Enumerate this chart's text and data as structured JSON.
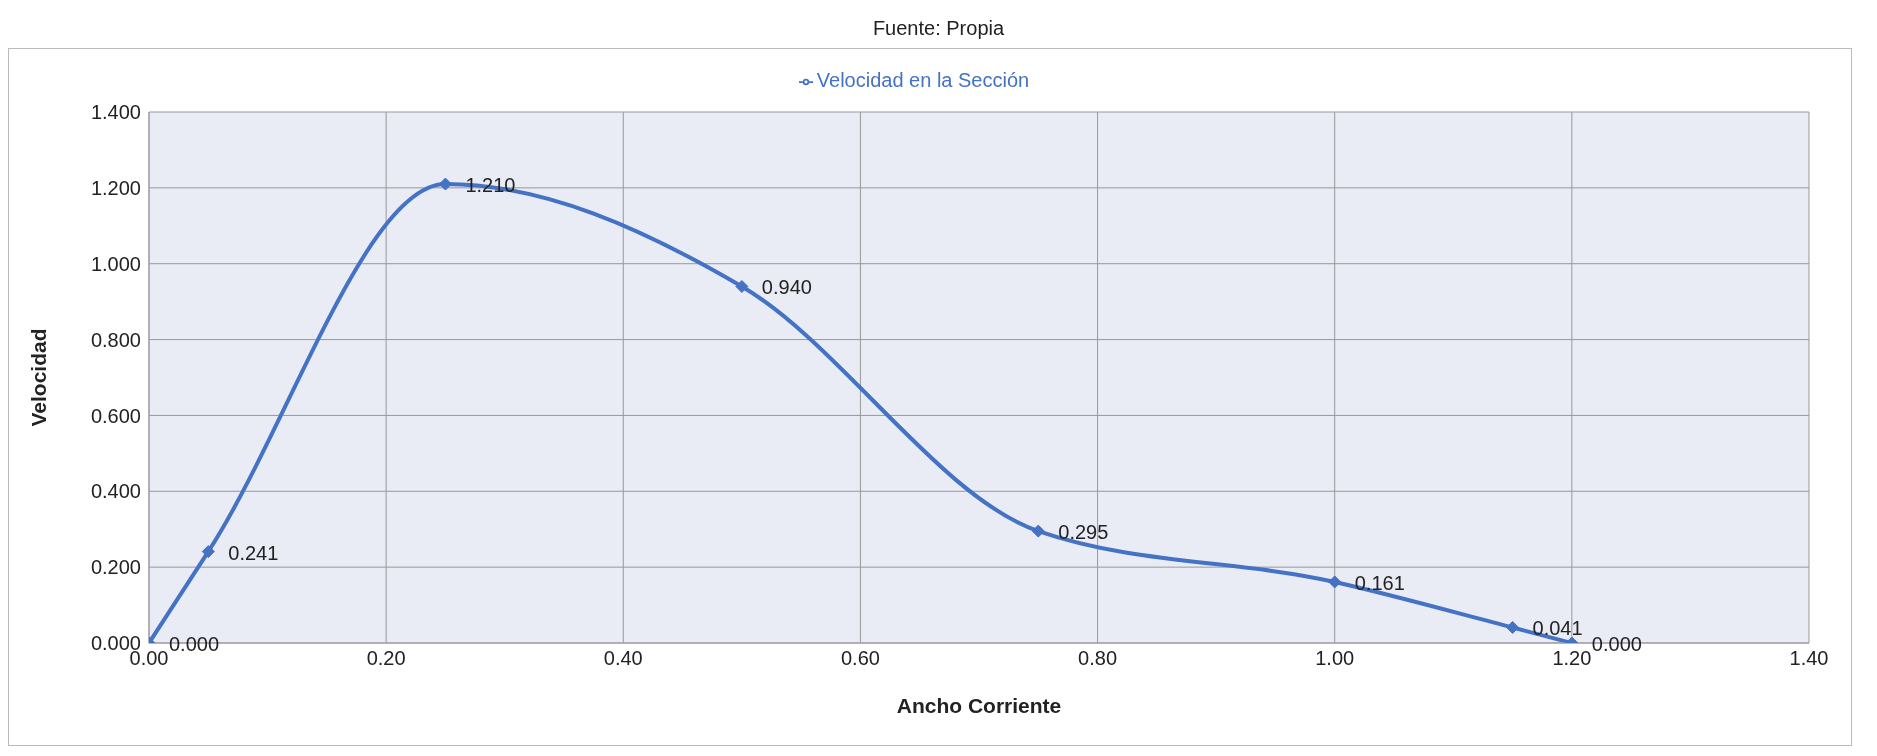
{
  "chart_data": {
    "type": "line",
    "xlabel": "Ancho Corriente",
    "ylabel": "Velocidad",
    "annotations": [
      "Fuente: Propia"
    ],
    "x": [
      0,
      0.05,
      0.25,
      0.5,
      0.75,
      1.0,
      1.15,
      1.2
    ],
    "series": [
      {
        "name": "Velocidad en la Sección",
        "color": "#4472c4",
        "values": [
          0,
          0.241,
          1.21,
          0.94,
          0.295,
          0.161,
          0.041,
          0
        ],
        "value_labels": [
          "0.000",
          "0.241",
          "1.210",
          "0.940",
          "0.295",
          "0.161",
          "0.041",
          "0.000"
        ]
      }
    ],
    "xlim": [
      0,
      1.4
    ],
    "xticks": [
      {
        "value": 0,
        "label": "0.00"
      },
      {
        "value": 0.2,
        "label": "0.20"
      },
      {
        "value": 0.4,
        "label": "0.40"
      },
      {
        "value": 0.6,
        "label": "0.60"
      },
      {
        "value": 0.8,
        "label": "0.80"
      },
      {
        "value": 1.0,
        "label": "1.00"
      },
      {
        "value": 1.2,
        "label": "1.20"
      },
      {
        "value": 1.4,
        "label": "1.40"
      }
    ],
    "ylim": [
      0,
      1.4
    ],
    "yticks": [
      {
        "value": 0,
        "label": "0.000"
      },
      {
        "value": 0.2,
        "label": "0.200"
      },
      {
        "value": 0.4,
        "label": "0.400"
      },
      {
        "value": 0.6,
        "label": "0.600"
      },
      {
        "value": 0.8,
        "label": "0.800"
      },
      {
        "value": 1.0,
        "label": "1.000"
      },
      {
        "value": 1.2,
        "label": "1.200"
      },
      {
        "value": 1.4,
        "label": "1.400"
      }
    ],
    "grid": true,
    "legend": "top",
    "marker": "diamond",
    "line_style": "solid"
  }
}
